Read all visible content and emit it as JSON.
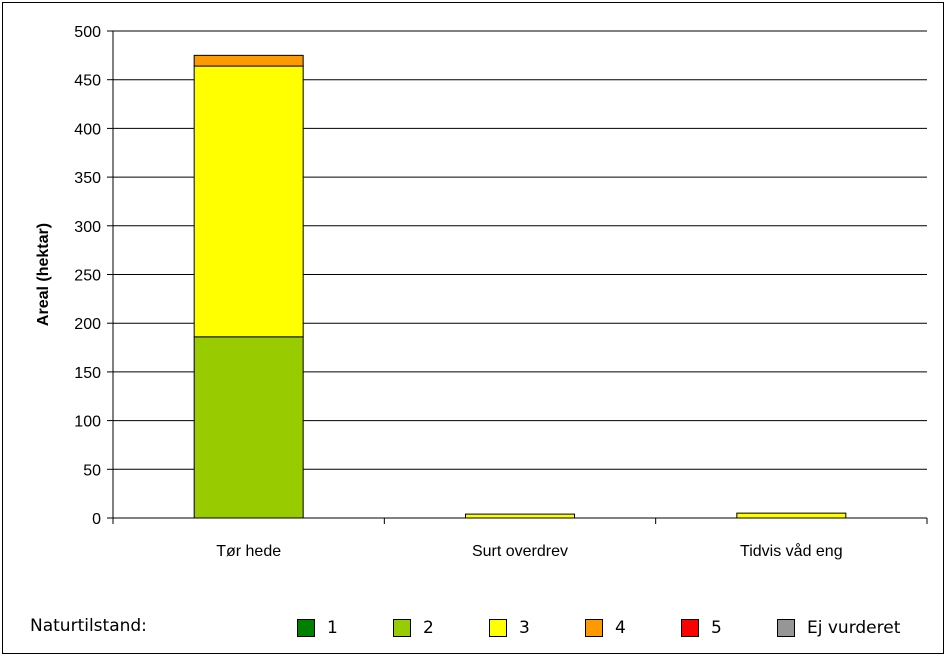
{
  "chart_data": {
    "type": "bar",
    "stacked": true,
    "categories": [
      "Tør hede",
      "Surt overdrev",
      "Tidvis våd eng"
    ],
    "ylabel": "Areal (hektar)",
    "xlabel": "",
    "ylim": [
      0,
      500
    ],
    "yticks": [
      0,
      50,
      100,
      150,
      200,
      250,
      300,
      350,
      400,
      450,
      500
    ],
    "grid": true,
    "series": [
      {
        "name": "1",
        "color": "#008000",
        "values": [
          0,
          0,
          0
        ]
      },
      {
        "name": "2",
        "color": "#99CC00",
        "values": [
          186,
          0,
          0
        ]
      },
      {
        "name": "3",
        "color": "#FFFF00",
        "values": [
          278,
          4,
          5
        ]
      },
      {
        "name": "4",
        "color": "#FF9900",
        "values": [
          11,
          0,
          0
        ]
      },
      {
        "name": "5",
        "color": "#FF0000",
        "values": [
          0,
          0,
          0
        ]
      },
      {
        "name": "Ej vurderet",
        "color": "#969696",
        "values": [
          0,
          0,
          0
        ]
      }
    ],
    "legend": {
      "title": "Naturtilstand:",
      "placement": "bottom"
    }
  }
}
